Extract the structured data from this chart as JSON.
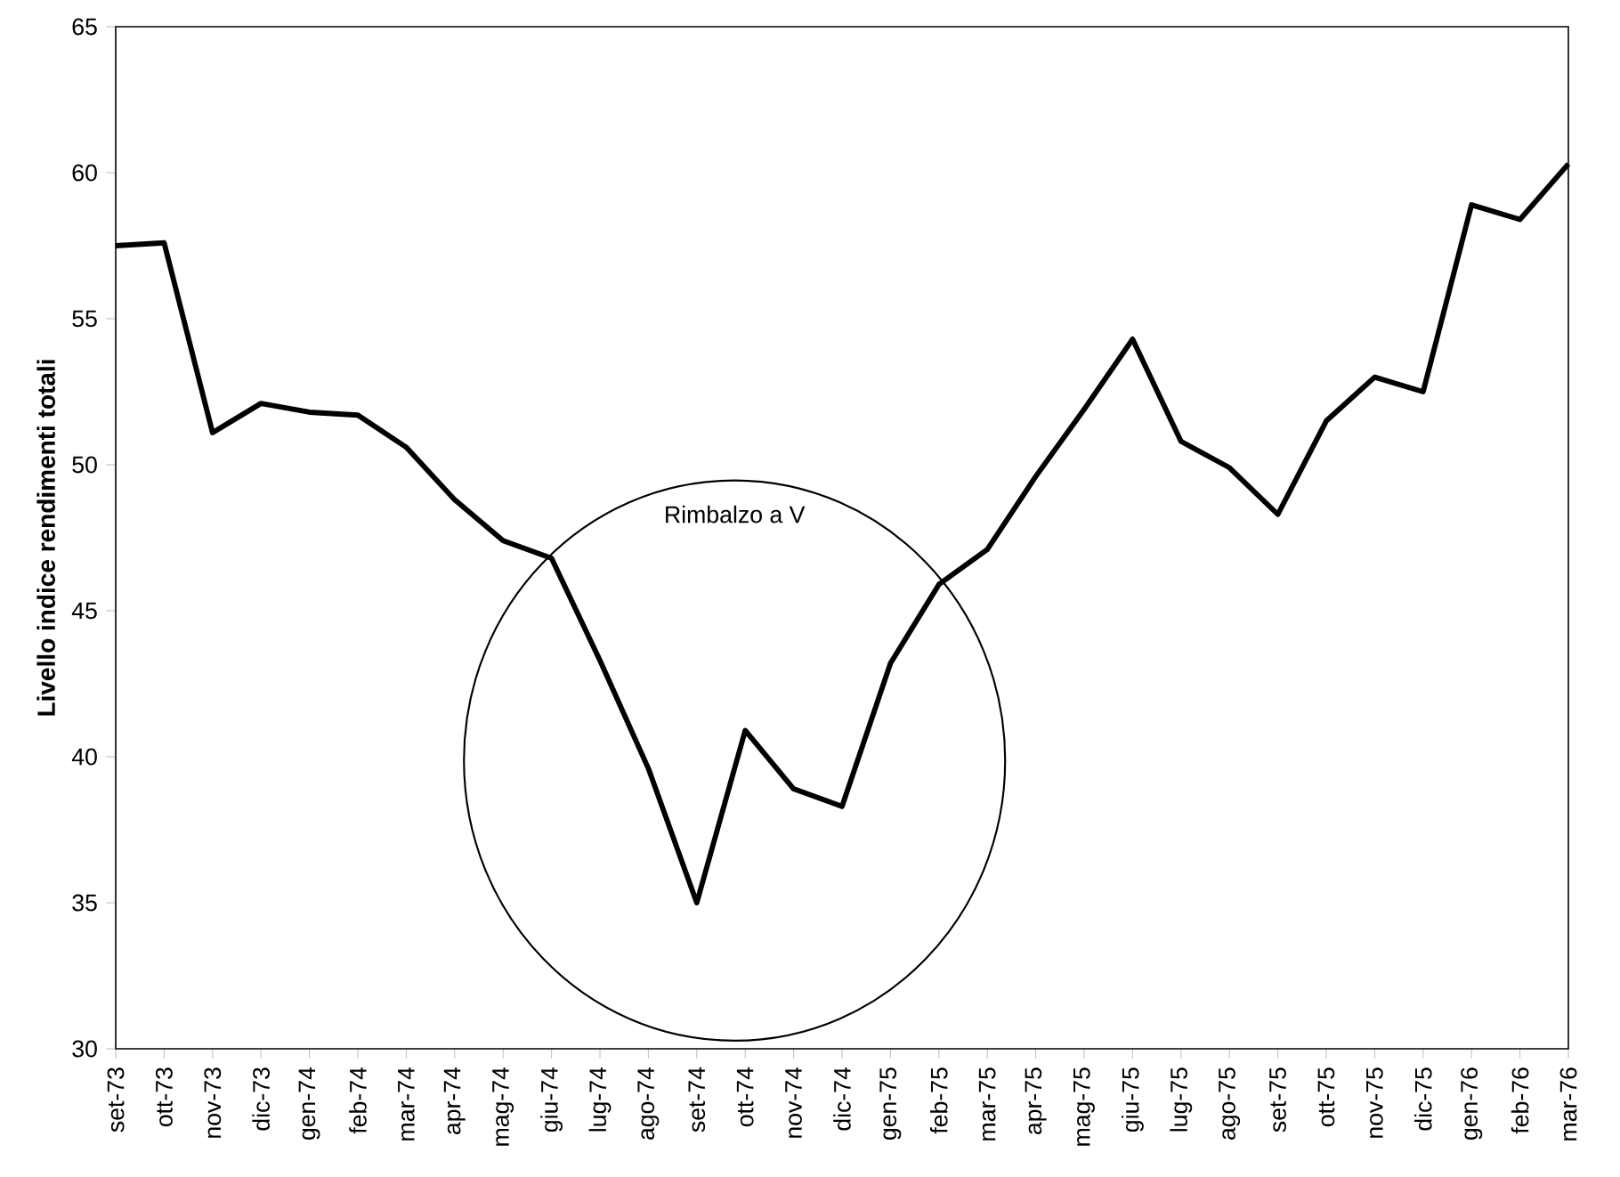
{
  "chart_data": {
    "type": "line",
    "ylabel": "Livello indice rendimenti totali",
    "categories": [
      "set-73",
      "ott-73",
      "nov-73",
      "dic-73",
      "gen-74",
      "feb-74",
      "mar-74",
      "apr-74",
      "mag-74",
      "giu-74",
      "lug-74",
      "ago-74",
      "set-74",
      "ott-74",
      "nov-74",
      "dic-74",
      "gen-75",
      "feb-75",
      "mar-75",
      "apr-75",
      "mag-75",
      "giu-75",
      "lug-75",
      "ago-75",
      "set-75",
      "ott-75",
      "nov-75",
      "dic-75",
      "gen-76",
      "feb-76",
      "mar-76"
    ],
    "series": [
      {
        "color": "#000000",
        "values": [
          57.5,
          57.6,
          51.1,
          52.1,
          51.8,
          51.7,
          50.6,
          48.8,
          47.4,
          46.8,
          43.3,
          39.6,
          35.0,
          40.9,
          38.9,
          38.3,
          43.2,
          45.9,
          47.1,
          49.6,
          51.9,
          54.3,
          50.8,
          49.9,
          48.3,
          51.5,
          53.0,
          52.5,
          58.9,
          58.4,
          60.3
        ]
      }
    ],
    "ylim": [
      30,
      65
    ],
    "yticks": [
      30,
      35,
      40,
      45,
      50,
      55,
      60,
      65
    ],
    "annotations": [
      "Rimbalzo a V"
    ],
    "marker": "none",
    "line_style": "solid"
  }
}
